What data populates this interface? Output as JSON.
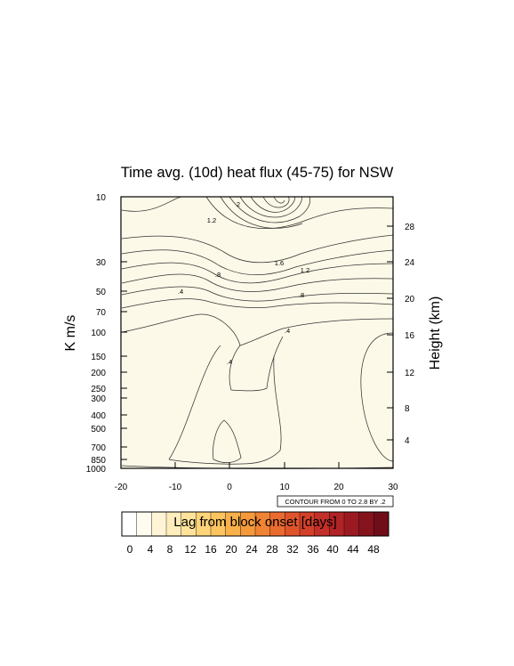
{
  "chart_data": {
    "type": "contour",
    "title": "Time avg. (10d) heat flux (45-75) for NSW",
    "ylabel": "K m/s",
    "y2label": "Height (km)",
    "xlabel": "",
    "x_range": [
      -20,
      30
    ],
    "x_ticks": [
      "-20",
      "-10",
      "0",
      "10",
      "20",
      "30"
    ],
    "y_scale": "log-pressure",
    "y_range_hPa": [
      1000,
      10
    ],
    "y_ticks": [
      "10",
      "30",
      "50",
      "70",
      "100",
      "150",
      "200",
      "250",
      "300",
      "400",
      "500",
      "700",
      "850",
      "1000"
    ],
    "y2_ticks": [
      "4",
      "8",
      "12",
      "16",
      "20",
      "24",
      "28"
    ],
    "contour_info": "CONTOUR FROM 0 TO 2.8 BY .2",
    "contour_levels": [
      0,
      0.2,
      0.4,
      0.6,
      0.8,
      1.0,
      1.2,
      1.4,
      1.6,
      1.8,
      2.0,
      2.2,
      2.4,
      2.6,
      2.8
    ],
    "contour_line_labels": [
      ".4",
      ".8",
      "1.2",
      "1.6",
      "2",
      ".4",
      ".8",
      "1.2",
      ".4"
    ],
    "fill_color": "#fdf9e8",
    "colorbar": {
      "label": "Lag from block onset [days]",
      "tick_labels": [
        "0",
        "4",
        "8",
        "12",
        "16",
        "20",
        "24",
        "28",
        "32",
        "36",
        "40",
        "44",
        "48"
      ],
      "colors": [
        "#ffffff",
        "#fffbee",
        "#fff5d6",
        "#ffedbb",
        "#ffe39b",
        "#fdd47a",
        "#fbc45e",
        "#f8b04a",
        "#f59a3c",
        "#f08334",
        "#ea6b2f",
        "#e0542c",
        "#d3402a",
        "#c32f29",
        "#b02326",
        "#9b1a22",
        "#85131d",
        "#6f0e18"
      ]
    }
  }
}
